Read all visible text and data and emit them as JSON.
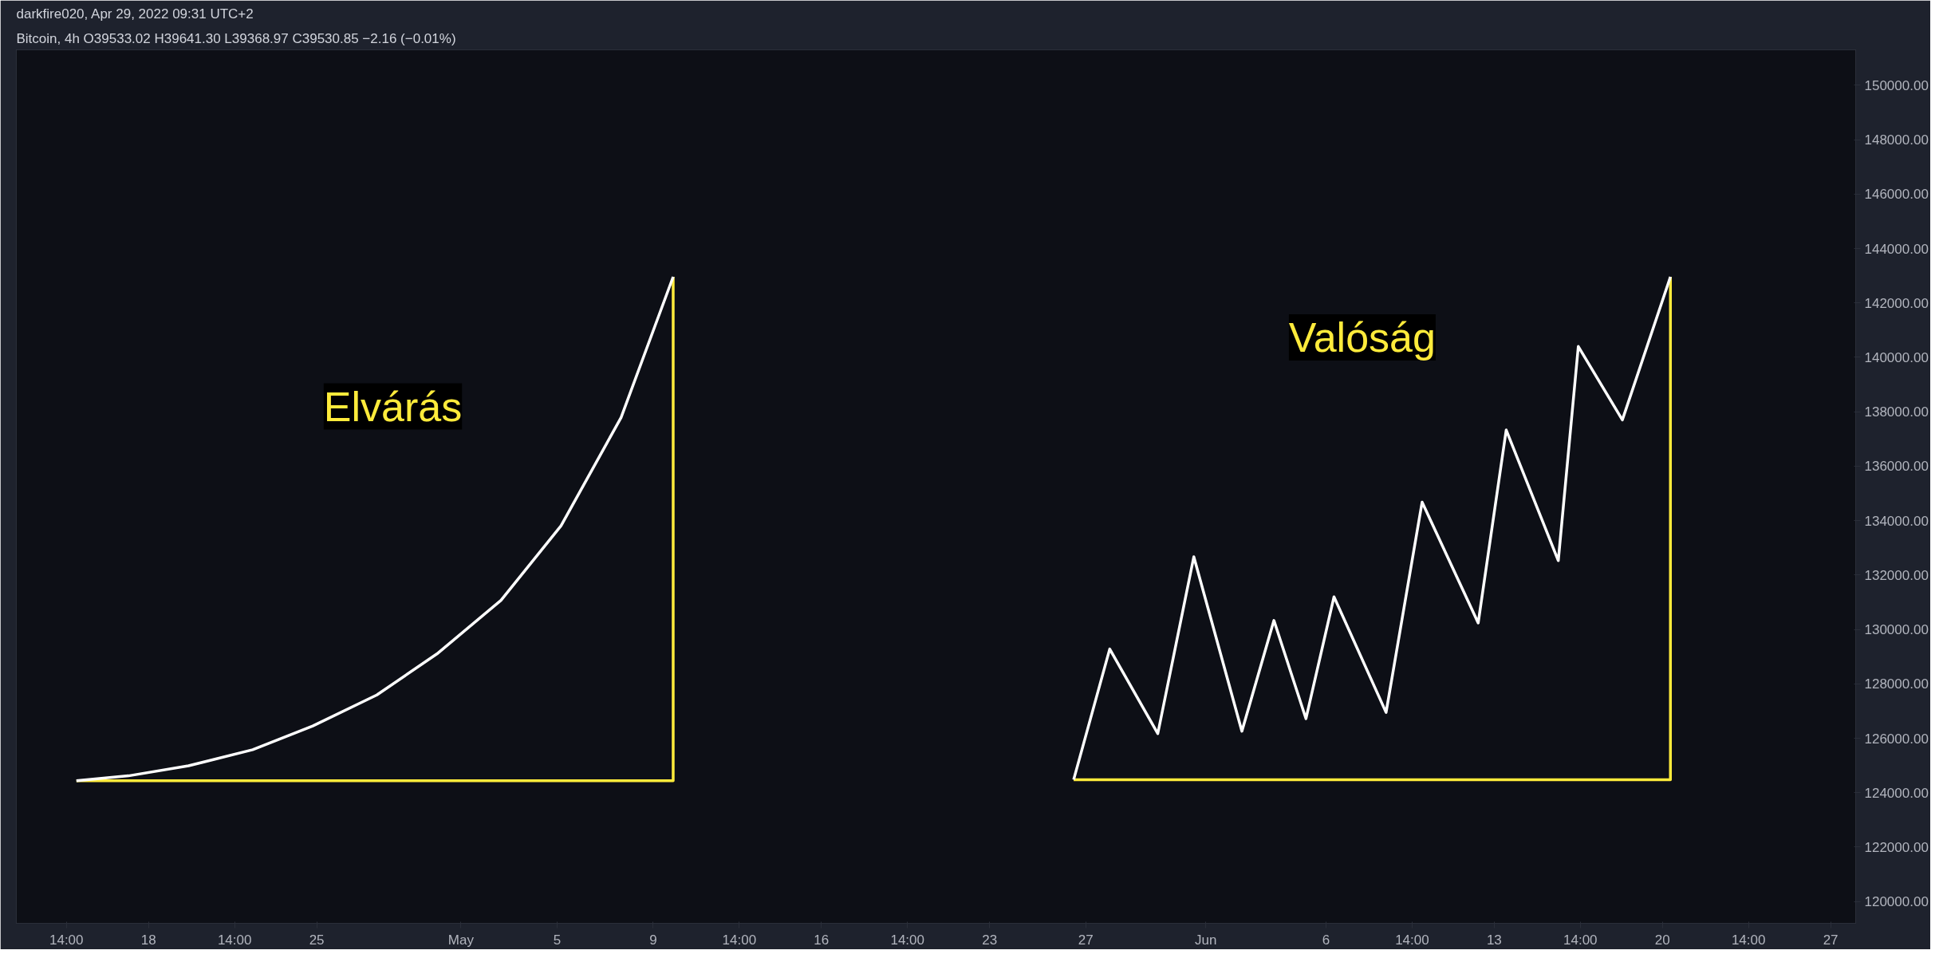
{
  "chart_data": {
    "type": "line",
    "title": "darkfire020, Apr 29, 2022 09:31 UTC+2",
    "subtitle": "Bitcoin, 4h  O39533.02  H39641.30  L39368.97  C39530.85  −2.16 (−0.01%)",
    "series": [
      {
        "color": "#ffeb3b",
        "x": [
          "2022-04-15T00:00",
          "2022-05-09T20:00",
          "2022-05-09T20:00"
        ],
        "values": [
          124440,
          124440,
          142960
        ]
      },
      {
        "color": "#ffffff",
        "x": [
          "2022-04-15T00:00",
          "2022-04-17T04:00",
          "2022-04-19T16:00",
          "2022-04-22T08:00",
          "2022-04-24T20:00",
          "2022-04-27T12:00",
          "2022-04-30T00:00",
          "2022-05-02T16:00",
          "2022-05-05T04:00",
          "2022-05-07T16:00",
          "2022-05-09T20:00"
        ],
        "values": [
          124440,
          124620,
          124990,
          125580,
          126450,
          127590,
          129100,
          131070,
          133810,
          137790,
          142960
        ]
      },
      {
        "color": "#ffeb3b",
        "x": [
          "2022-05-26T12:00",
          "2022-06-20T08:00",
          "2022-06-20T08:00"
        ],
        "values": [
          124480,
          124480,
          142960
        ]
      },
      {
        "color": "#ffffff",
        "x": [
          "2022-05-26T12:00",
          "2022-05-28T00:00",
          "2022-05-30T00:00",
          "2022-05-31T12:00",
          "2022-06-02T12:00",
          "2022-06-03T20:00",
          "2022-06-05T04:00",
          "2022-06-06T08:00",
          "2022-06-08T12:00",
          "2022-06-10T00:00",
          "2022-06-12T08:00",
          "2022-06-13T12:00",
          "2022-06-15T16:00",
          "2022-06-16T12:00",
          "2022-06-18T08:00",
          "2022-06-20T08:00"
        ],
        "values": [
          124480,
          129280,
          126170,
          132670,
          126260,
          130330,
          126720,
          131200,
          126950,
          134680,
          130240,
          137330,
          132530,
          140400,
          137700,
          142960
        ]
      }
    ],
    "annotations": [
      "Elvárás",
      "Valóság"
    ],
    "xlim": [
      "2022-04-12T12:00",
      "2022-06-28T01:00"
    ],
    "xticks": [
      {
        "value": "2022-04-14T14:00",
        "label": "14:00"
      },
      {
        "value": "2022-04-18",
        "label": "18"
      },
      {
        "value": "2022-04-21T14:00",
        "label": "14:00"
      },
      {
        "value": "2022-04-25",
        "label": "25"
      },
      {
        "value": "2022-05-01",
        "label": "May"
      },
      {
        "value": "2022-05-05",
        "label": "5"
      },
      {
        "value": "2022-05-09",
        "label": "9"
      },
      {
        "value": "2022-05-12T14:00",
        "label": "14:00"
      },
      {
        "value": "2022-05-16",
        "label": "16"
      },
      {
        "value": "2022-05-19T14:00",
        "label": "14:00"
      },
      {
        "value": "2022-05-23",
        "label": "23"
      },
      {
        "value": "2022-05-27",
        "label": "27"
      },
      {
        "value": "2022-06-01",
        "label": "Jun"
      },
      {
        "value": "2022-06-06",
        "label": "6"
      },
      {
        "value": "2022-06-09T14:00",
        "label": "14:00"
      },
      {
        "value": "2022-06-13",
        "label": "13"
      },
      {
        "value": "2022-06-16T14:00",
        "label": "14:00"
      },
      {
        "value": "2022-06-20",
        "label": "20"
      },
      {
        "value": "2022-06-23T14:00",
        "label": "14:00"
      },
      {
        "value": "2022-06-27",
        "label": "27"
      }
    ],
    "ylim": [
      119200,
      151300
    ],
    "yticks": [
      {
        "value": 120000,
        "label": "120000.00"
      },
      {
        "value": 122000,
        "label": "122000.00"
      },
      {
        "value": 124000,
        "label": "124000.00"
      },
      {
        "value": 126000,
        "label": "126000.00"
      },
      {
        "value": 128000,
        "label": "128000.00"
      },
      {
        "value": 130000,
        "label": "130000.00"
      },
      {
        "value": 132000,
        "label": "132000.00"
      },
      {
        "value": 134000,
        "label": "134000.00"
      },
      {
        "value": 136000,
        "label": "136000.00"
      },
      {
        "value": 138000,
        "label": "138000.00"
      },
      {
        "value": 140000,
        "label": "140000.00"
      },
      {
        "value": 142000,
        "label": "142000.00"
      },
      {
        "value": 144000,
        "label": "144000.00"
      },
      {
        "value": 146000,
        "label": "146000.00"
      },
      {
        "value": 148000,
        "label": "148000.00"
      },
      {
        "value": 150000,
        "label": "150000.00"
      }
    ]
  }
}
